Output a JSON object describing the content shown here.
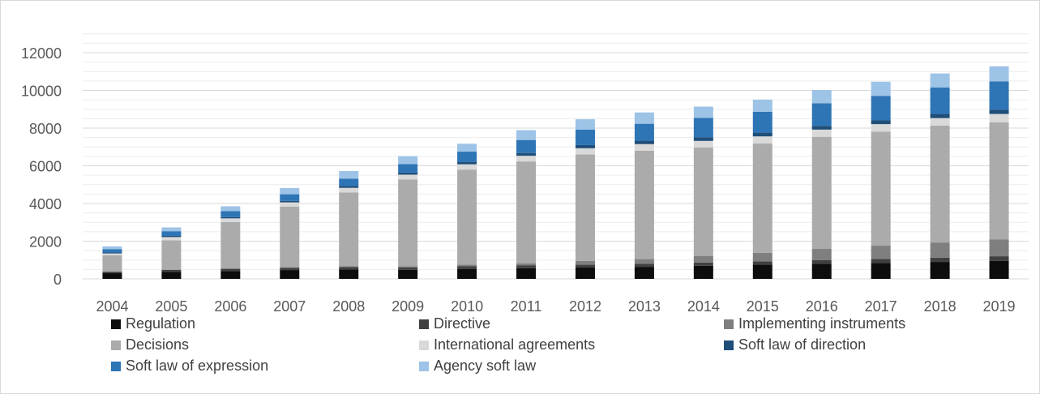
{
  "chart_data": {
    "type": "bar",
    "stacked": true,
    "categories": [
      "2004",
      "2005",
      "2006",
      "2007",
      "2008",
      "2009",
      "2010",
      "2011",
      "2012",
      "2013",
      "2014",
      "2015",
      "2016",
      "2017",
      "2018",
      "2019"
    ],
    "ylim": [
      0,
      12000
    ],
    "yticks": [
      0,
      2000,
      4000,
      6000,
      8000,
      10000,
      12000
    ],
    "grid": true,
    "legend_position": "bottom",
    "series": [
      {
        "name": "Regulation",
        "color": "#0d0d0d",
        "values": [
          300,
          380,
          420,
          470,
          500,
          480,
          530,
          570,
          600,
          640,
          700,
          750,
          800,
          850,
          900,
          950
        ]
      },
      {
        "name": "Directive",
        "color": "#404040",
        "values": [
          80,
          100,
          110,
          120,
          130,
          130,
          140,
          140,
          150,
          160,
          170,
          180,
          190,
          210,
          230,
          250
        ]
      },
      {
        "name": "Implementing instruments",
        "color": "#7f7f7f",
        "values": [
          20,
          20,
          30,
          40,
          50,
          60,
          80,
          120,
          200,
          250,
          350,
          450,
          600,
          700,
          800,
          900
        ]
      },
      {
        "name": "Decisions",
        "color": "#ababab",
        "values": [
          850,
          1550,
          2450,
          3200,
          3900,
          4600,
          5050,
          5400,
          5650,
          5750,
          5750,
          5800,
          5950,
          6050,
          6200,
          6200
        ]
      },
      {
        "name": "International agreements",
        "color": "#d9d9d9",
        "values": [
          100,
          170,
          200,
          230,
          250,
          260,
          280,
          300,
          330,
          350,
          350,
          380,
          380,
          400,
          400,
          450
        ]
      },
      {
        "name": "Soft law of direction",
        "color": "#1f4e79",
        "values": [
          50,
          60,
          70,
          80,
          100,
          110,
          130,
          150,
          170,
          180,
          190,
          200,
          200,
          200,
          220,
          230
        ]
      },
      {
        "name": "Soft law of expression",
        "color": "#2e75b6",
        "values": [
          170,
          250,
          320,
          350,
          390,
          450,
          540,
          690,
          820,
          900,
          1030,
          1100,
          1200,
          1300,
          1400,
          1500
        ]
      },
      {
        "name": "Agency soft law",
        "color": "#9dc3e6",
        "values": [
          150,
          200,
          250,
          330,
          400,
          420,
          420,
          520,
          550,
          600,
          600,
          650,
          700,
          750,
          750,
          800
        ]
      }
    ]
  }
}
